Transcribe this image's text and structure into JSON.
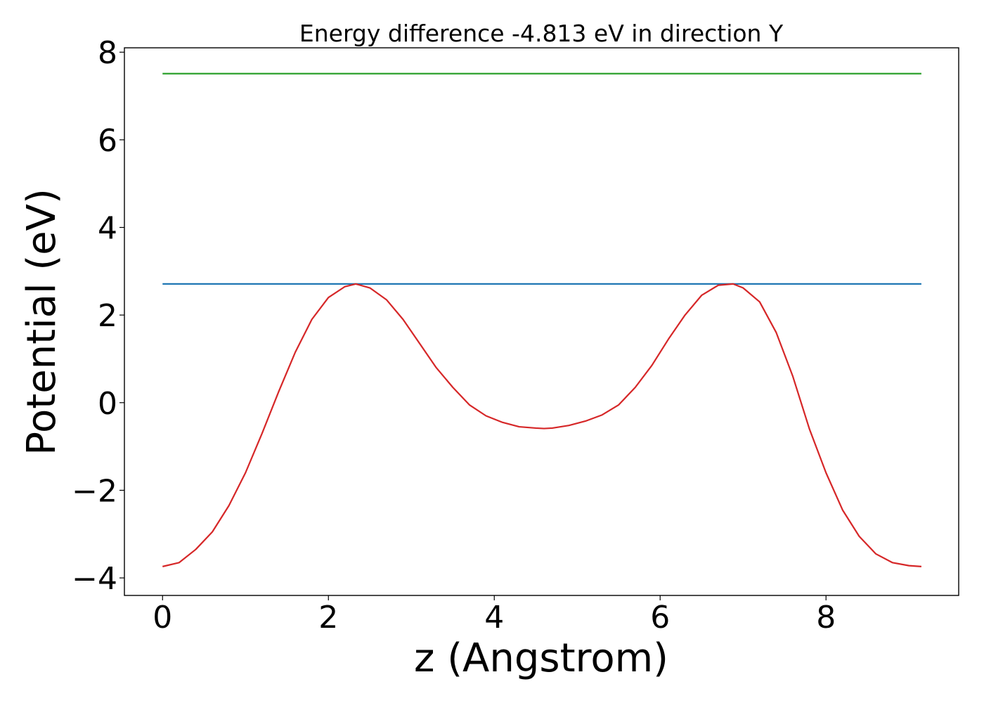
{
  "chart_data": {
    "type": "line",
    "title": "Energy difference -4.813 eV in direction Y",
    "xlabel": "z (Angstrom)",
    "ylabel": "Potential (eV)",
    "xlim": [
      -0.46,
      9.6
    ],
    "ylim": [
      -4.4,
      8.1
    ],
    "xticks": [
      0,
      2,
      4,
      6,
      8
    ],
    "yticks": [
      -4,
      -2,
      0,
      2,
      4,
      6,
      8
    ],
    "grid": false,
    "legend": "none",
    "series": [
      {
        "color": "#2ca02c",
        "x": [
          0,
          9.15
        ],
        "y": [
          7.51,
          7.51
        ]
      },
      {
        "color": "#1f77b4",
        "x": [
          0,
          9.15
        ],
        "y": [
          2.71,
          2.71
        ]
      },
      {
        "color": "#d62728",
        "x": [
          0,
          0.2,
          0.4,
          0.6,
          0.8,
          1.0,
          1.2,
          1.4,
          1.6,
          1.8,
          2.0,
          2.2,
          2.33,
          2.5,
          2.7,
          2.9,
          3.1,
          3.3,
          3.5,
          3.7,
          3.9,
          4.1,
          4.3,
          4.5,
          4.6,
          4.7,
          4.9,
          5.1,
          5.3,
          5.5,
          5.7,
          5.9,
          6.1,
          6.3,
          6.5,
          6.7,
          6.88,
          7.0,
          7.2,
          7.4,
          7.6,
          7.8,
          8.0,
          8.2,
          8.4,
          8.6,
          8.8,
          9.0,
          9.15
        ],
        "y": [
          -3.74,
          -3.65,
          -3.35,
          -2.95,
          -2.35,
          -1.6,
          -0.7,
          0.25,
          1.15,
          1.9,
          2.4,
          2.65,
          2.71,
          2.62,
          2.35,
          1.9,
          1.35,
          0.8,
          0.35,
          -0.05,
          -0.3,
          -0.45,
          -0.55,
          -0.58,
          -0.59,
          -0.58,
          -0.52,
          -0.42,
          -0.28,
          -0.05,
          0.35,
          0.85,
          1.45,
          2.0,
          2.45,
          2.68,
          2.71,
          2.62,
          2.3,
          1.6,
          0.6,
          -0.6,
          -1.6,
          -2.45,
          -3.05,
          -3.45,
          -3.65,
          -3.72,
          -3.74
        ]
      }
    ]
  }
}
